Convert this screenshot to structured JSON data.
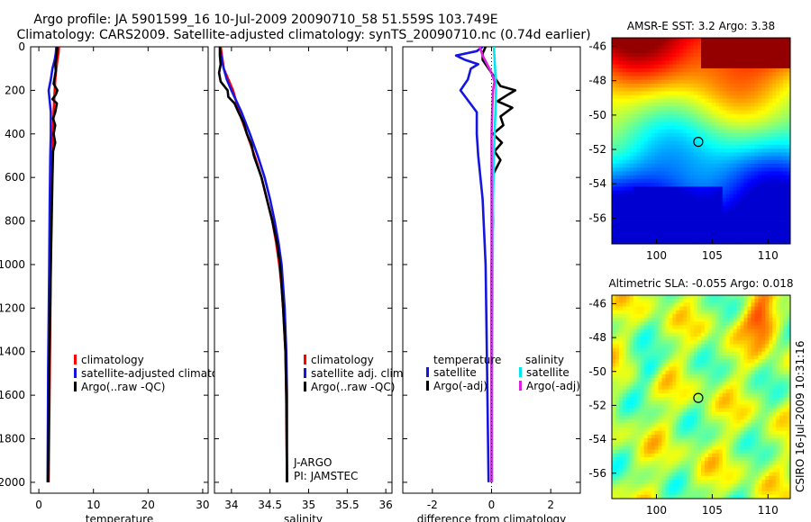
{
  "header": {
    "title_line1": "Argo profile: JA 5901599_16 10-Jul-2009 20090710_58 51.559S 103.749E",
    "title_line2": "Climatology: CARS2009. Satellite-adjusted climatology: synTS_20090710.nc (0.74d earlier)"
  },
  "side_stamp": "CSIRO 16-Jul-2009 10:31:16",
  "colors": {
    "red": "#ff0000",
    "blue": "#1515e0",
    "black": "#000000",
    "cyan": "#00e5ee",
    "magenta": "#e020e0"
  },
  "chart_data": [
    {
      "id": "temperature",
      "type": "line",
      "xlabel": "temperature",
      "xlim": [
        -1.5,
        31
      ],
      "ylim": [
        2050,
        0
      ],
      "xticks": [
        0,
        10,
        20,
        30
      ],
      "yticks": [
        0,
        200,
        400,
        600,
        800,
        1000,
        1200,
        1400,
        1600,
        1800,
        2000
      ],
      "legend": [
        "climatology",
        "satellite-adjusted climatology",
        "Argo(..raw -QC)"
      ],
      "series": [
        {
          "name": "climatology",
          "color": "red",
          "depth": [
            0,
            30,
            60,
            100,
            150,
            200,
            250,
            300,
            400,
            500,
            700,
            1000,
            1500,
            2000
          ],
          "values": [
            3.7,
            3.6,
            3.4,
            3.2,
            3.0,
            2.9,
            2.8,
            2.7,
            2.6,
            2.5,
            2.35,
            2.2,
            2.0,
            1.8
          ]
        },
        {
          "name": "satellite-adjusted climatology",
          "color": "blue",
          "depth": [
            0,
            30,
            60,
            100,
            150,
            200,
            250,
            300,
            400,
            500,
            700,
            1000,
            1500,
            2000
          ],
          "values": [
            3.2,
            3.1,
            2.9,
            2.5,
            2.2,
            1.8,
            2.0,
            2.2,
            2.2,
            2.1,
            2.0,
            1.9,
            1.7,
            1.6
          ]
        },
        {
          "name": "Argo(..raw -QC)",
          "color": "black",
          "depth": [
            0,
            25,
            50,
            80,
            110,
            140,
            170,
            200,
            220,
            240,
            260,
            300,
            330,
            360,
            400,
            440,
            480,
            600,
            1000,
            1500,
            2000
          ],
          "values": [
            3.4,
            3.3,
            3.2,
            3.0,
            3.1,
            2.9,
            2.7,
            3.4,
            3.1,
            2.5,
            3.3,
            3.0,
            2.6,
            3.0,
            2.7,
            3.0,
            2.6,
            2.5,
            2.2,
            1.9,
            1.7
          ]
        }
      ]
    },
    {
      "id": "salinity",
      "type": "line",
      "xlabel": "salinity",
      "xlim": [
        33.78,
        36.08
      ],
      "ylim": [
        2050,
        0
      ],
      "xticks": [
        34,
        34.5,
        35,
        35.5,
        36
      ],
      "legend": [
        "climatology",
        "satellite adj. clim.",
        "Argo(..raw -QC)"
      ],
      "annotation": [
        "J-ARGO",
        "PI: JAMSTEC"
      ],
      "series": [
        {
          "name": "climatology",
          "color": "red",
          "depth": [
            0,
            50,
            100,
            150,
            200,
            300,
            400,
            500,
            600,
            700,
            800,
            900,
            1000,
            1100,
            1200,
            1400,
            1600,
            2000
          ],
          "values": [
            33.86,
            33.88,
            33.9,
            33.96,
            34.02,
            34.1,
            34.2,
            34.3,
            34.39,
            34.46,
            34.53,
            34.58,
            34.62,
            34.65,
            34.67,
            34.7,
            34.71,
            34.72
          ]
        },
        {
          "name": "satellite adj. clim.",
          "color": "blue",
          "depth": [
            0,
            50,
            100,
            150,
            200,
            300,
            400,
            500,
            600,
            700,
            800,
            900,
            1000,
            1100,
            1200,
            1400,
            1600,
            2000
          ],
          "values": [
            33.85,
            33.87,
            33.9,
            33.94,
            34.0,
            34.13,
            34.24,
            34.34,
            34.43,
            34.5,
            34.56,
            34.61,
            34.65,
            34.67,
            34.69,
            34.71,
            34.72,
            34.72
          ]
        },
        {
          "name": "Argo(..raw -QC)",
          "color": "black",
          "depth": [
            0,
            40,
            80,
            120,
            160,
            200,
            230,
            260,
            300,
            350,
            400,
            450,
            500,
            600,
            700,
            800,
            900,
            1000,
            1200,
            1400,
            1600,
            2000
          ],
          "values": [
            33.85,
            33.85,
            33.86,
            33.84,
            33.86,
            33.95,
            33.96,
            34.04,
            34.09,
            34.16,
            34.2,
            34.26,
            34.29,
            34.39,
            34.46,
            34.53,
            34.59,
            34.63,
            34.67,
            34.7,
            34.71,
            34.72
          ]
        }
      ]
    },
    {
      "id": "difference",
      "type": "line",
      "xlabel": "difference from climatology",
      "xlim": [
        -3,
        3
      ],
      "ylim": [
        2050,
        0
      ],
      "xticks": [
        -2,
        0,
        2
      ],
      "legend_temperature_title": "temperature",
      "legend_salinity_title": "salinity",
      "legend_temperature": [
        "satellite",
        "Argo(-adj)"
      ],
      "legend_salinity": [
        "satellite",
        "Argo(-adj)"
      ],
      "series": [
        {
          "name": "temperature satellite",
          "color": "blue",
          "depth": [
            0,
            20,
            40,
            60,
            80,
            100,
            150,
            200,
            300,
            400,
            500,
            700,
            1000,
            1500,
            2000
          ],
          "values": [
            -0.3,
            -0.5,
            -1.2,
            -0.9,
            -0.45,
            -0.7,
            -0.8,
            -1.05,
            -0.5,
            -0.5,
            -0.45,
            -0.3,
            -0.2,
            -0.15,
            -0.1
          ]
        },
        {
          "name": "temperature Argo(-adj)",
          "color": "black",
          "depth": [
            0,
            30,
            60,
            100,
            140,
            180,
            200,
            220,
            250,
            280,
            320,
            360,
            400,
            440,
            480,
            520,
            600,
            800,
            1000,
            1500,
            2000
          ],
          "values": [
            -0.2,
            -0.3,
            -0.3,
            -0.1,
            0.1,
            0.3,
            0.8,
            0.55,
            0.2,
            0.7,
            0.3,
            0.4,
            0.05,
            0.35,
            0.1,
            0.3,
            0.0,
            0.05,
            0.0,
            0.0,
            0.0
          ]
        },
        {
          "name": "salinity satellite",
          "color": "cyan",
          "depth": [
            0,
            100,
            200,
            300,
            400,
            500,
            700,
            1000,
            1500,
            2000
          ],
          "values": [
            0.08,
            0.12,
            0.15,
            0.13,
            0.1,
            0.08,
            0.05,
            0.04,
            0.02,
            0.02
          ]
        },
        {
          "name": "salinity Argo(-adj)",
          "color": "magenta",
          "depth": [
            0,
            40,
            80,
            120,
            160,
            200,
            300,
            400,
            500,
            700,
            1000,
            1500,
            2000
          ],
          "values": [
            -0.4,
            -0.3,
            -0.15,
            0.0,
            0.1,
            0.05,
            0.02,
            0.0,
            0.0,
            0.0,
            0.0,
            0.0,
            0.0
          ]
        }
      ]
    },
    {
      "id": "sst_map",
      "type": "heatmap",
      "title": "AMSR-E SST: 3.2 Argo: 3.38",
      "xlim": [
        96,
        112
      ],
      "ylim": [
        -57.5,
        -45.5
      ],
      "xticks": [
        100,
        105,
        110
      ],
      "yticks": [
        -46,
        -48,
        -50,
        -52,
        -54,
        -56
      ],
      "argo_marker": {
        "lon": 103.75,
        "lat": -51.56
      }
    },
    {
      "id": "sla_map",
      "type": "heatmap",
      "title": "Altimetric SLA: -0.055 Argo: 0.018",
      "xlim": [
        96,
        112
      ],
      "ylim": [
        -57.5,
        -45.5
      ],
      "xticks": [
        100,
        105,
        110
      ],
      "yticks": [
        -46,
        -48,
        -50,
        -52,
        -54,
        -56
      ],
      "argo_marker": {
        "lon": 103.75,
        "lat": -51.56
      }
    }
  ]
}
